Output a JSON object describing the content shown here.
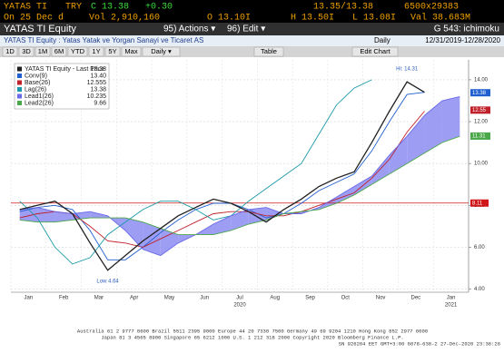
{
  "header": {
    "ticker": "YATAS TI",
    "currency": "TRY",
    "last": "C 13.38",
    "change": "+0.30",
    "bid_ask": "13.35/13.38",
    "size": "6500x29383",
    "on": "On 25 Dec d",
    "volume": "Vol 2,910,160",
    "open": "O 13.10I",
    "high": "H 13.50I",
    "low": "L 13.08I",
    "value": "Val 38.683M"
  },
  "toolbar": {
    "actions": "95) Actions ▾",
    "edit": "96) Edit ▾",
    "page": "G 543: ichimoku"
  },
  "info": {
    "security": "YATAS TI Equity : Yatas Yatak ve Yorgan Sanayi ve Ticaret AS",
    "period": "Daily",
    "range": "12/31/2019-12/28/2020"
  },
  "buttons": [
    "1D",
    "3D",
    "1M",
    "6M",
    "YTD",
    "1Y",
    "5Y",
    "Max",
    "Daily ▾"
  ],
  "table": "Table",
  "edit_chart": "Edit Chart",
  "chart_data": {
    "type": "line",
    "title": "YATAS TI Equity",
    "categories": [
      "Jan",
      null,
      "Feb",
      null,
      "Mar",
      null,
      "Apr",
      null,
      "May",
      null,
      "Jun",
      null,
      "Jul",
      null,
      "Aug",
      null,
      "Sep",
      null,
      "Oct",
      null,
      "Nov",
      null,
      "Dec",
      null,
      "Jan",
      null
    ],
    "years": [
      {
        "label": "2020",
        "at": 12
      },
      {
        "label": "2021",
        "at": 24
      }
    ],
    "ylim": [
      3.85,
      14.95
    ],
    "yticks": [
      {
        "value": 4,
        "label": "4.00"
      },
      {
        "value": 6,
        "label": "6.00"
      },
      {
        "value": 8,
        "label": "8.00"
      },
      {
        "value": 10,
        "label": "10.00"
      },
      {
        "value": 12,
        "label": "12.00"
      },
      {
        "value": 14,
        "label": "14.00"
      }
    ],
    "grid": true,
    "legend_title": "YATAS TI Equity - Last Price",
    "series": [
      {
        "name": "Conv(9)",
        "legend_value": "13.40",
        "color": "#1f5fd0",
        "values": [
          7.7,
          7.9,
          8.0,
          7.8,
          6.8,
          5.4,
          5.4,
          6.0,
          6.7,
          7.3,
          7.8,
          8.1,
          8.1,
          7.8,
          7.4,
          7.6,
          8.1,
          8.7,
          9.1,
          9.5,
          10.6,
          12.0,
          13.3,
          13.4,
          null,
          null
        ]
      },
      {
        "name": "Base(26)",
        "legend_value": "12.555",
        "color": "#c0202a",
        "values": [
          7.4,
          7.6,
          7.7,
          7.6,
          7.0,
          6.3,
          6.2,
          6.0,
          6.4,
          6.8,
          7.2,
          7.6,
          7.7,
          7.7,
          7.5,
          7.5,
          7.7,
          8.0,
          8.3,
          8.6,
          9.3,
          10.2,
          11.5,
          12.5,
          null,
          null
        ]
      },
      {
        "name": "Lag(26)",
        "legend_value": "13.38",
        "color": "#1a9aa8",
        "values": [
          8.2,
          7.4,
          6.0,
          5.2,
          5.5,
          6.6,
          7.2,
          7.8,
          8.2,
          8.2,
          7.8,
          7.3,
          7.5,
          8.2,
          8.8,
          9.4,
          10.0,
          11.4,
          12.8,
          13.6,
          14.0,
          null,
          null,
          null,
          null,
          null
        ]
      },
      {
        "name": "Lead1(26)",
        "legend_value": "10.235",
        "color": "#6a6ae8",
        "values": [
          7.8,
          7.9,
          7.7,
          7.6,
          7.7,
          7.5,
          6.8,
          5.9,
          5.6,
          6.2,
          6.6,
          7.1,
          7.5,
          7.8,
          7.9,
          7.6,
          7.6,
          7.9,
          8.4,
          8.9,
          9.4,
          10.4,
          11.3,
          12.3,
          13.0,
          13.2
        ]
      },
      {
        "name": "Lead2(26)",
        "legend_value": "9.66",
        "color": "#4aa84a",
        "values": [
          7.3,
          7.2,
          7.2,
          7.3,
          7.4,
          7.4,
          7.4,
          7.2,
          6.9,
          6.6,
          6.6,
          6.6,
          6.8,
          7.1,
          7.3,
          7.6,
          7.7,
          7.8,
          8.1,
          8.5,
          9.0,
          9.5,
          10.0,
          10.5,
          11.0,
          11.3
        ]
      },
      {
        "name": "Last Price",
        "legend_value": "13.38",
        "color": "#202020",
        "values": [
          7.8,
          8.0,
          8.2,
          7.6,
          6.2,
          4.9,
          5.6,
          6.3,
          6.9,
          7.5,
          7.9,
          8.3,
          8.1,
          7.7,
          7.2,
          7.8,
          8.3,
          8.9,
          9.3,
          9.6,
          11.0,
          12.5,
          13.9,
          13.4,
          null,
          null
        ]
      }
    ],
    "cloud_color": "#8c8cf2",
    "reference": {
      "value": 8.11,
      "label": "8.11",
      "color": "#d01818"
    },
    "price_tags": [
      {
        "value": 13.38,
        "label": "13.38",
        "color": "#1f5fd0"
      },
      {
        "value": 12.55,
        "label": "12.55",
        "color": "#c0202a"
      },
      {
        "value": 11.31,
        "label": "11.31",
        "color": "#4aa84a"
      }
    ],
    "annotations": [
      {
        "text": "Hi: 14.31",
        "x": 22,
        "y": 14.31
      },
      {
        "text": "Low 4.64",
        "x": 5,
        "y": 4.64
      }
    ]
  },
  "footer": [
    "Australia 61 2 9777 8600 Brazil 5511 2395 9000 Europe 44 20 7330 7500 Germany 49 69 9204 1210 Hong Kong 852 2977 6000",
    "Japan 81 3 4565 8900 Singapore 65 6212 1000 U.S. 1 212 318 2000 Copyright 2020 Bloomberg Finance L.P.",
    "SN 926264 EET GMT+3:00 G678-638-2 27-Dec-2020 23:36:26"
  ]
}
